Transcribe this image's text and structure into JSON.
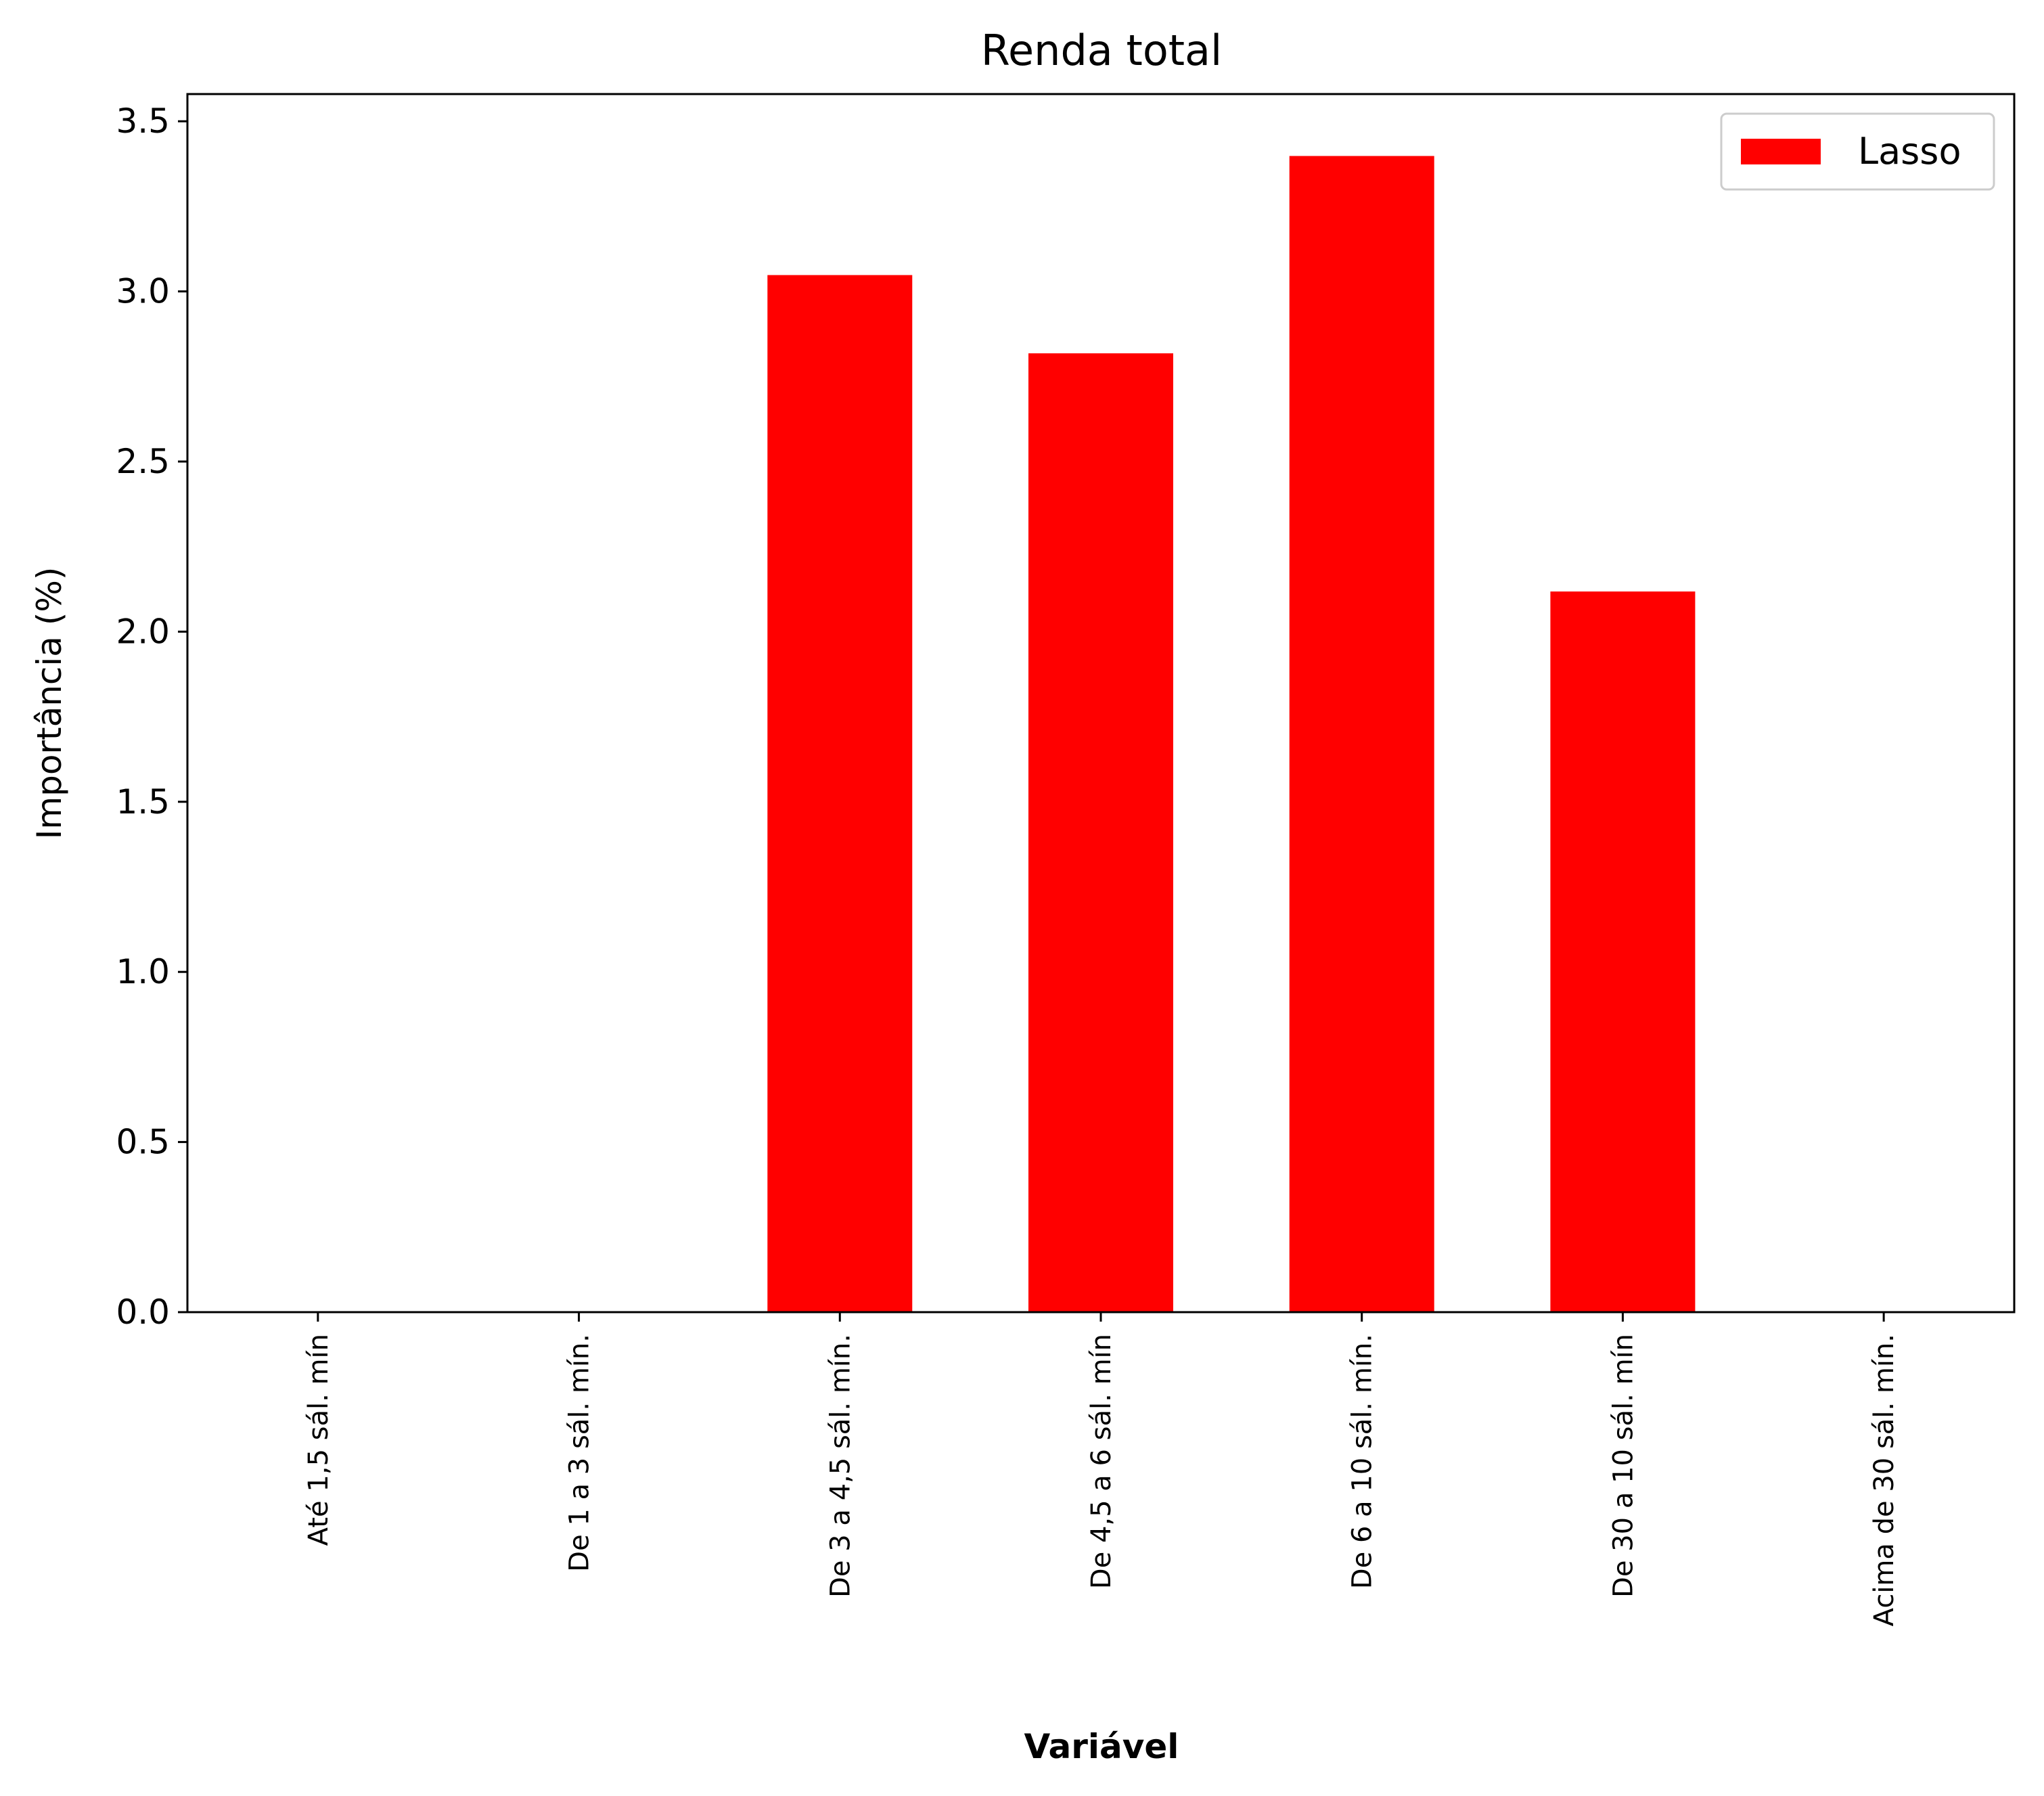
{
  "chart_data": {
    "type": "bar",
    "title": "Renda total",
    "xlabel": "Variável",
    "ylabel": "Importância (%)",
    "categories": [
      "Até 1,5 sál. mín",
      "De 1 a 3 sál. mín.",
      "De 3 a 4,5 sál. mín.",
      "De 4,5 a 6 sál. mín",
      "De 6 a 10 sál. mín.",
      "De 30 a 10 sál. mín",
      "Acima de 30 sál. mín."
    ],
    "series": [
      {
        "name": "Lasso",
        "color": "#ff0000",
        "values": [
          0.0,
          0.0,
          3.05,
          2.82,
          3.4,
          2.12,
          0.0
        ]
      }
    ],
    "ylim": [
      0,
      3.58
    ],
    "yticks": [
      0.0,
      0.5,
      1.0,
      1.5,
      2.0,
      2.5,
      3.0,
      3.5
    ],
    "ytick_labels": [
      "0.0",
      "0.5",
      "1.0",
      "1.5",
      "2.0",
      "2.5",
      "3.0",
      "3.5"
    ],
    "grid": false,
    "legend": "top-right"
  }
}
